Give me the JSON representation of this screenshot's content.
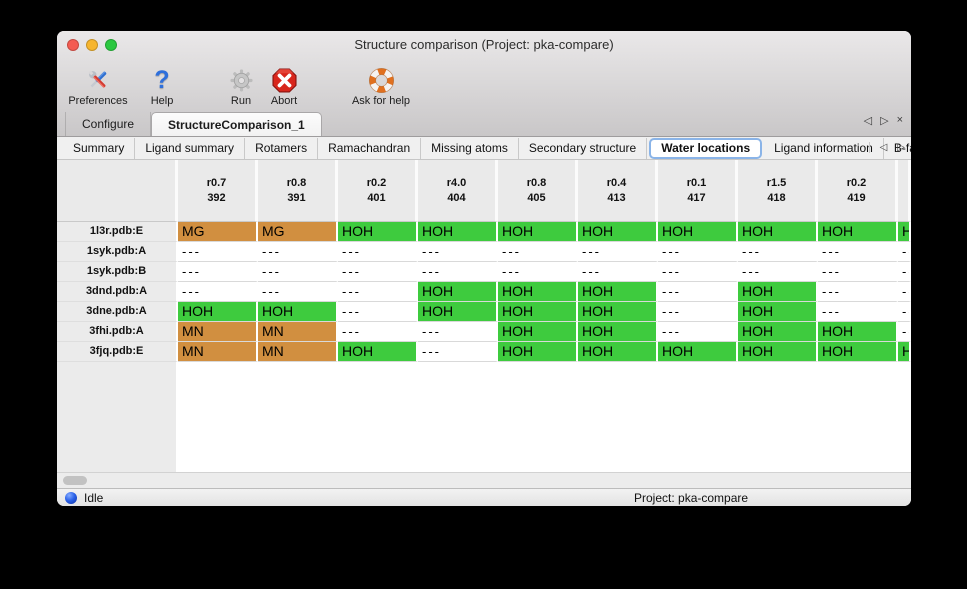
{
  "window": {
    "title": "Structure comparison (Project: pka-compare)"
  },
  "toolbar": {
    "items": [
      {
        "label": "Preferences",
        "icon": "tools-icon"
      },
      {
        "label": "Help",
        "icon": "help-icon"
      },
      {
        "label": "Run",
        "icon": "gear-icon"
      },
      {
        "label": "Abort",
        "icon": "abort-icon"
      },
      {
        "label": "Ask for help",
        "icon": "lifebuoy-icon"
      }
    ]
  },
  "tabbar": {
    "tabs": [
      {
        "label": "Configure",
        "active": false
      },
      {
        "label": "StructureComparison_1",
        "active": true
      }
    ],
    "nav_back": "◁",
    "nav_forward": "▷",
    "close": "×"
  },
  "subtabbar": {
    "tabs": [
      "Summary",
      "Ligand summary",
      "Rotamers",
      "Ramachandran",
      "Missing atoms",
      "Secondary structure",
      "Water locations",
      "Ligand information",
      "B-factors"
    ],
    "active": "Water locations",
    "nav_back": "◁",
    "nav_forward": "▷"
  },
  "table": {
    "corner": "",
    "columns": [
      {
        "line1": "r0.7",
        "line2": "392"
      },
      {
        "line1": "r0.8",
        "line2": "391"
      },
      {
        "line1": "r0.2",
        "line2": "401"
      },
      {
        "line1": "r4.0",
        "line2": "404"
      },
      {
        "line1": "r0.8",
        "line2": "405"
      },
      {
        "line1": "r0.4",
        "line2": "413"
      },
      {
        "line1": "r0.1",
        "line2": "417"
      },
      {
        "line1": "r1.5",
        "line2": "418"
      },
      {
        "line1": "r0.2",
        "line2": "419"
      },
      {
        "line1": "",
        "line2": ""
      }
    ],
    "rows": [
      {
        "label": "1l3r.pdb:E",
        "cells": [
          "MG",
          "MG",
          "HOH",
          "HOH",
          "HOH",
          "HOH",
          "HOH",
          "HOH",
          "HOH",
          "HOH"
        ]
      },
      {
        "label": "1syk.pdb:A",
        "cells": [
          "---",
          "---",
          "---",
          "---",
          "---",
          "---",
          "---",
          "---",
          "---",
          "---"
        ]
      },
      {
        "label": "1syk.pdb:B",
        "cells": [
          "---",
          "---",
          "---",
          "---",
          "---",
          "---",
          "---",
          "---",
          "---",
          "---"
        ]
      },
      {
        "label": "3dnd.pdb:A",
        "cells": [
          "---",
          "---",
          "---",
          "HOH",
          "HOH",
          "HOH",
          "---",
          "HOH",
          "---",
          "---"
        ]
      },
      {
        "label": "3dne.pdb:A",
        "cells": [
          "HOH",
          "HOH",
          "---",
          "HOH",
          "HOH",
          "HOH",
          "---",
          "HOH",
          "---",
          "---"
        ]
      },
      {
        "label": "3fhi.pdb:A",
        "cells": [
          "MN",
          "MN",
          "---",
          "---",
          "HOH",
          "HOH",
          "---",
          "HOH",
          "HOH",
          "---"
        ]
      },
      {
        "label": "3fjq.pdb:E",
        "cells": [
          "MN",
          "MN",
          "HOH",
          "---",
          "HOH",
          "HOH",
          "HOH",
          "HOH",
          "HOH",
          "HOH"
        ]
      }
    ],
    "value_colors": {
      "MG": "#d18f40",
      "MN": "#d18f40",
      "HOH": "#3ecb3e",
      "---": "#ffffff"
    }
  },
  "statusbar": {
    "status": "Idle",
    "project": "Project: pka-compare"
  }
}
